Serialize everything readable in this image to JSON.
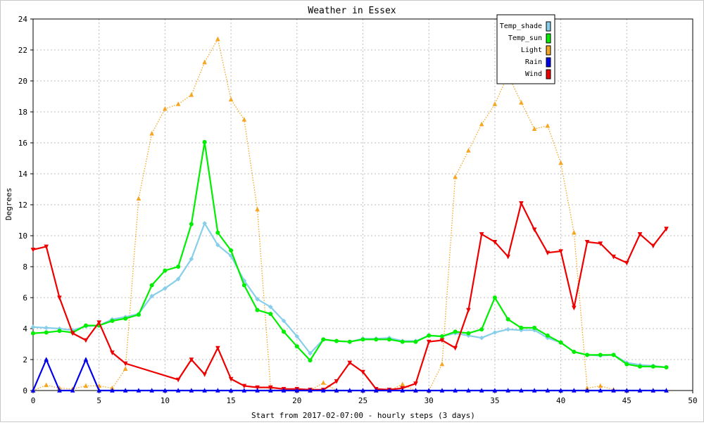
{
  "chart_data": {
    "type": "line",
    "title": "Weather in Essex",
    "xlabel": "Start from 2017-02-07:00 - hourly steps (3 days)",
    "ylabel": "Degrees",
    "xlim": [
      0,
      50
    ],
    "ylim": [
      0,
      24
    ],
    "xticks": [
      0,
      5,
      10,
      15,
      20,
      25,
      30,
      35,
      40,
      45,
      50
    ],
    "yticks": [
      0,
      2,
      4,
      6,
      8,
      10,
      12,
      14,
      16,
      18,
      20,
      22,
      24
    ],
    "grid": true,
    "legend_position": "top-right",
    "series": [
      {
        "name": "Temp_shade",
        "color": "#87ceeb",
        "marker": "diamond",
        "line": "solid",
        "x": [
          0,
          1,
          2,
          3,
          4,
          5,
          6,
          7,
          8,
          9,
          10,
          11,
          12,
          13,
          14,
          15,
          16,
          17,
          18,
          19,
          20,
          21,
          22,
          23,
          24,
          25,
          26,
          27,
          28,
          29,
          30,
          31,
          32,
          33,
          34,
          35,
          36,
          37,
          38,
          39,
          40,
          41,
          42,
          43,
          44,
          45,
          46,
          47,
          48
        ],
        "values": [
          4.1,
          4.05,
          4.0,
          3.9,
          4.15,
          4.2,
          4.6,
          4.75,
          4.95,
          6.1,
          6.6,
          7.2,
          8.5,
          10.8,
          9.4,
          8.7,
          7.1,
          5.9,
          5.4,
          4.5,
          3.5,
          2.4,
          3.3,
          3.2,
          3.15,
          3.35,
          3.35,
          3.4,
          3.2,
          3.2,
          3.55,
          3.5,
          3.7,
          3.55,
          3.4,
          3.75,
          3.95,
          3.9,
          3.9,
          3.4,
          3.1,
          2.5,
          2.3,
          2.25,
          2.3,
          1.8,
          1.65,
          1.6,
          1.5
        ]
      },
      {
        "name": "Temp_sun",
        "color": "#00ee00",
        "marker": "circle",
        "line": "solid",
        "x": [
          0,
          1,
          2,
          3,
          4,
          5,
          6,
          7,
          8,
          9,
          10,
          11,
          12,
          13,
          14,
          15,
          16,
          17,
          18,
          19,
          20,
          21,
          22,
          23,
          24,
          25,
          26,
          27,
          28,
          29,
          30,
          31,
          32,
          33,
          34,
          35,
          36,
          37,
          38,
          39,
          40,
          41,
          42,
          43,
          44,
          45,
          46,
          47,
          48
        ],
        "values": [
          3.7,
          3.75,
          3.85,
          3.75,
          4.2,
          4.2,
          4.5,
          4.65,
          4.9,
          6.8,
          7.75,
          8.0,
          10.75,
          16.05,
          10.2,
          9.05,
          6.8,
          5.2,
          4.95,
          3.8,
          2.85,
          1.95,
          3.3,
          3.2,
          3.15,
          3.3,
          3.3,
          3.3,
          3.15,
          3.15,
          3.55,
          3.5,
          3.8,
          3.7,
          3.95,
          6.0,
          4.6,
          4.05,
          4.05,
          3.55,
          3.1,
          2.5,
          2.3,
          2.3,
          2.3,
          1.7,
          1.55,
          1.55,
          1.5
        ]
      },
      {
        "name": "Light",
        "color": "#f5a623",
        "marker": "triangle-up",
        "line": "dotted",
        "x": [
          0,
          1,
          2,
          3,
          4,
          5,
          6,
          7,
          8,
          9,
          10,
          11,
          12,
          13,
          14,
          15,
          16,
          17,
          18,
          19,
          20,
          21,
          22,
          23,
          24,
          25,
          26,
          27,
          28,
          29,
          30,
          31,
          32,
          33,
          34,
          35,
          36,
          37,
          38,
          39,
          40,
          41,
          42,
          43,
          44,
          45,
          46,
          47,
          48
        ],
        "values": [
          0.0,
          0.35,
          0.15,
          0.1,
          0.3,
          0.3,
          0.15,
          1.4,
          12.4,
          16.6,
          18.2,
          18.5,
          19.1,
          21.2,
          22.7,
          18.8,
          17.5,
          11.7,
          0.2,
          0.05,
          0.0,
          0.0,
          0.5,
          0.0,
          0.0,
          0.0,
          0.0,
          0.0,
          0.4,
          0.0,
          0.0,
          1.7,
          13.8,
          15.5,
          17.2,
          18.5,
          20.4,
          18.6,
          16.9,
          17.1,
          14.7,
          10.2,
          0.15,
          0.3,
          0.05,
          0.0,
          0.0,
          0.0,
          0.0
        ]
      },
      {
        "name": "Rain",
        "color": "#0000ee",
        "marker": "triangle-up",
        "line": "solid",
        "x": [
          0,
          1,
          2,
          3,
          4,
          5,
          6,
          7,
          8,
          9,
          10,
          11,
          12,
          13,
          14,
          15,
          16,
          17,
          18,
          19,
          20,
          21,
          22,
          23,
          24,
          25,
          26,
          27,
          28,
          29,
          30,
          31,
          32,
          33,
          34,
          35,
          36,
          37,
          38,
          39,
          40,
          41,
          42,
          43,
          44,
          45,
          46,
          47,
          48
        ],
        "values": [
          0,
          2,
          0,
          0,
          2,
          0,
          0,
          0,
          0,
          0,
          0,
          0,
          0,
          0,
          0,
          0,
          0,
          0,
          0,
          0,
          0,
          0,
          0,
          0,
          0,
          0,
          0,
          0,
          0,
          0,
          0,
          0,
          0,
          0,
          0,
          0,
          0,
          0,
          0,
          0,
          0,
          0,
          0,
          0,
          0,
          0,
          0,
          0,
          0
        ]
      },
      {
        "name": "Wind",
        "color": "#ee0000",
        "marker": "triangle-down",
        "line": "solid",
        "x": [
          0,
          1,
          2,
          3,
          4,
          5,
          6,
          7,
          11,
          12,
          13,
          14,
          15,
          16,
          17,
          18,
          19,
          20,
          21,
          22,
          23,
          24,
          25,
          26,
          27,
          28,
          29,
          30,
          31,
          32,
          33,
          34,
          35,
          36,
          37,
          38,
          39,
          40,
          41,
          42,
          43,
          44,
          45,
          46,
          47,
          48
        ],
        "values": [
          9.1,
          9.3,
          6.0,
          3.7,
          3.25,
          4.4,
          2.45,
          1.75,
          0.7,
          2.0,
          1.05,
          2.75,
          0.75,
          0.3,
          0.2,
          0.2,
          0.1,
          0.1,
          0.05,
          0.05,
          0.6,
          1.8,
          1.2,
          0.1,
          0.05,
          0.15,
          0.45,
          3.15,
          3.25,
          2.75,
          5.2,
          10.1,
          9.6,
          8.65,
          12.1,
          10.4,
          8.9,
          9.0,
          5.35,
          9.6,
          9.5,
          8.65,
          8.25,
          10.1,
          9.35,
          10.45
        ]
      }
    ]
  }
}
